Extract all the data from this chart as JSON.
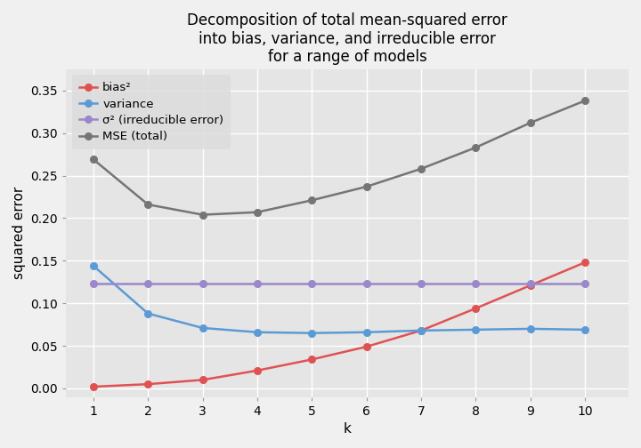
{
  "k": [
    1,
    2,
    3,
    4,
    5,
    6,
    7,
    8,
    9,
    10
  ],
  "bias2": [
    0.002,
    0.005,
    0.01,
    0.021,
    0.034,
    0.049,
    0.068,
    0.094,
    0.121,
    0.148
  ],
  "variance": [
    0.144,
    0.088,
    0.071,
    0.066,
    0.065,
    0.066,
    0.068,
    0.069,
    0.07,
    0.069
  ],
  "sigma2": [
    0.123,
    0.123,
    0.123,
    0.123,
    0.123,
    0.123,
    0.123,
    0.123,
    0.123,
    0.123
  ],
  "mse": [
    0.269,
    0.216,
    0.204,
    0.207,
    0.221,
    0.237,
    0.258,
    0.283,
    0.312,
    0.338
  ],
  "bias2_color": "#e05252",
  "variance_color": "#5b9bd5",
  "sigma2_color": "#9b87c9",
  "mse_color": "#757575",
  "title": "Decomposition of total mean-squared error\ninto bias, variance, and irreducible error\nfor a range of models",
  "xlabel": "k",
  "ylabel": "squared error",
  "ylim": [
    -0.01,
    0.375
  ],
  "yticks": [
    0.0,
    0.05,
    0.1,
    0.15,
    0.2,
    0.25,
    0.3,
    0.35
  ],
  "plot_bg_color": "#e5e5e5",
  "fig_bg_color": "#f0f0f0",
  "legend_bg_color": "#dcdcdc",
  "legend_labels": [
    "bias²",
    "variance",
    "σ² (irreducible error)",
    "MSE (total)"
  ],
  "title_fontsize": 12,
  "axis_label_fontsize": 11,
  "tick_fontsize": 10,
  "legend_fontsize": 9.5,
  "linewidth": 1.8,
  "markersize": 5.5
}
